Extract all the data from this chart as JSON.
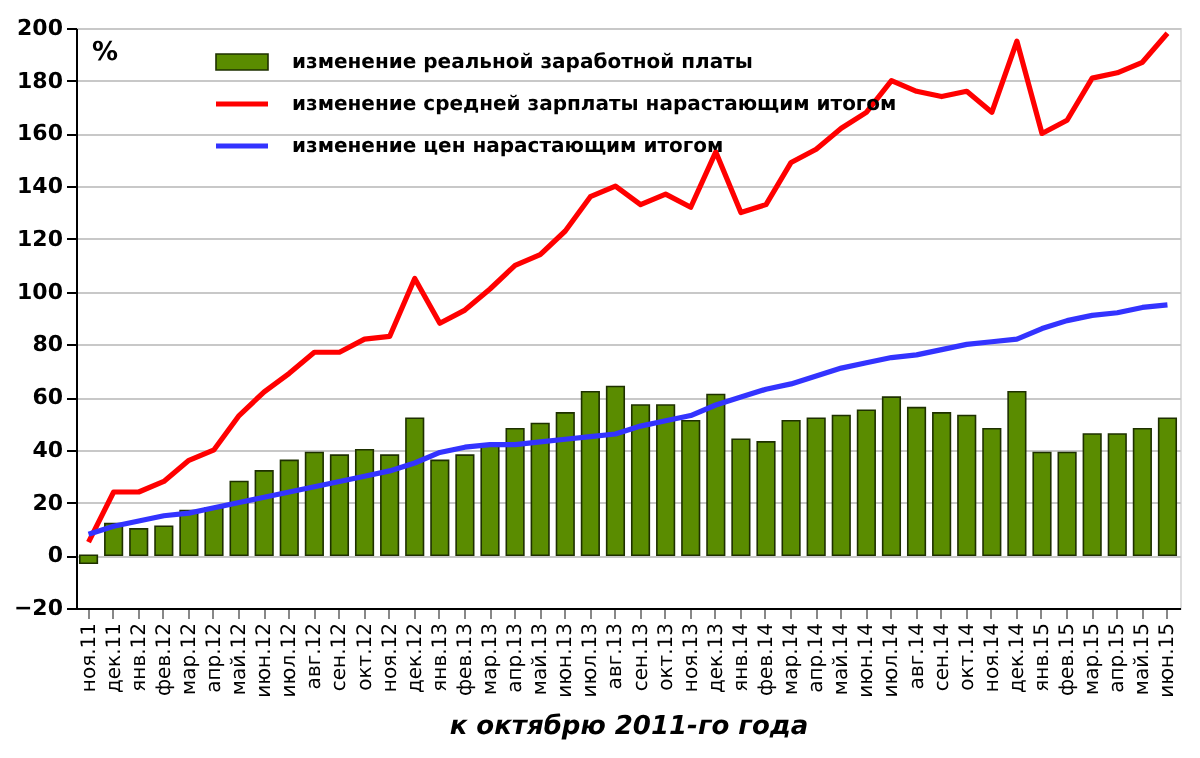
{
  "chart_data": {
    "type": "bar",
    "xlabel": "к октябрю 2011-го года",
    "ylabel": "%",
    "categories": [
      "ноя.11",
      "дек.11",
      "янв.12",
      "фев.12",
      "мар.12",
      "апр.12",
      "май.12",
      "июн.12",
      "июл.12",
      "авг.12",
      "сен.12",
      "окт.12",
      "ноя.12",
      "дек.12",
      "янв.13",
      "фев.13",
      "мар.13",
      "апр.13",
      "май.13",
      "июн.13",
      "июл.13",
      "авг.13",
      "сен.13",
      "окт.13",
      "ноя.13",
      "дек.13",
      "янв.14",
      "фев.14",
      "мар.14",
      "апр.14",
      "май.14",
      "июн.14",
      "июл.14",
      "авг.14",
      "сен.14",
      "окт.14",
      "ноя.14",
      "дек.14",
      "янв.15",
      "фев.15",
      "мар.15",
      "апр.15",
      "май.15",
      "июн.15"
    ],
    "series": [
      {
        "name": "изменение реальной заработной платы",
        "color": "#5a8c00",
        "values": [
          -3,
          12,
          10,
          11,
          17,
          18,
          28,
          32,
          36,
          39,
          38,
          40,
          38,
          52,
          36,
          38,
          42,
          48,
          50,
          54,
          62,
          64,
          57,
          57,
          51,
          61,
          44,
          43,
          51,
          52,
          53,
          55,
          60,
          56,
          54,
          53,
          48,
          62,
          39,
          39,
          46,
          46,
          48,
          52
        ]
      },
      {
        "name": "изменение средней зарплаты нарастающим  итогом",
        "type": "line",
        "color": "#ff0000",
        "values": [
          5,
          24,
          24,
          28,
          36,
          40,
          53,
          62,
          69,
          77,
          77,
          82,
          83,
          105,
          88,
          93,
          101,
          110,
          114,
          123,
          136,
          140,
          133,
          137,
          132,
          153,
          130,
          133,
          149,
          154,
          162,
          168,
          180,
          176,
          174,
          176,
          168,
          195,
          160,
          165,
          181,
          183,
          187,
          198
        ]
      },
      {
        "name": "изменение цен нарастающим  итогом",
        "type": "line",
        "color": "#3333ff",
        "values": [
          8,
          11,
          13,
          15,
          16,
          18,
          20,
          22,
          24,
          26,
          28,
          30,
          32,
          35,
          39,
          41,
          42,
          42,
          43,
          44,
          45,
          46,
          49,
          51,
          53,
          57,
          60,
          63,
          65,
          68,
          71,
          73,
          75,
          76,
          78,
          80,
          81,
          82,
          86,
          89,
          91,
          92,
          94,
          95
        ]
      }
    ],
    "ylim": [
      -20,
      200
    ],
    "yticks": [
      -20,
      0,
      20,
      40,
      60,
      80,
      100,
      120,
      140,
      160,
      180,
      200
    ],
    "grid": "y",
    "legend": "top left"
  }
}
